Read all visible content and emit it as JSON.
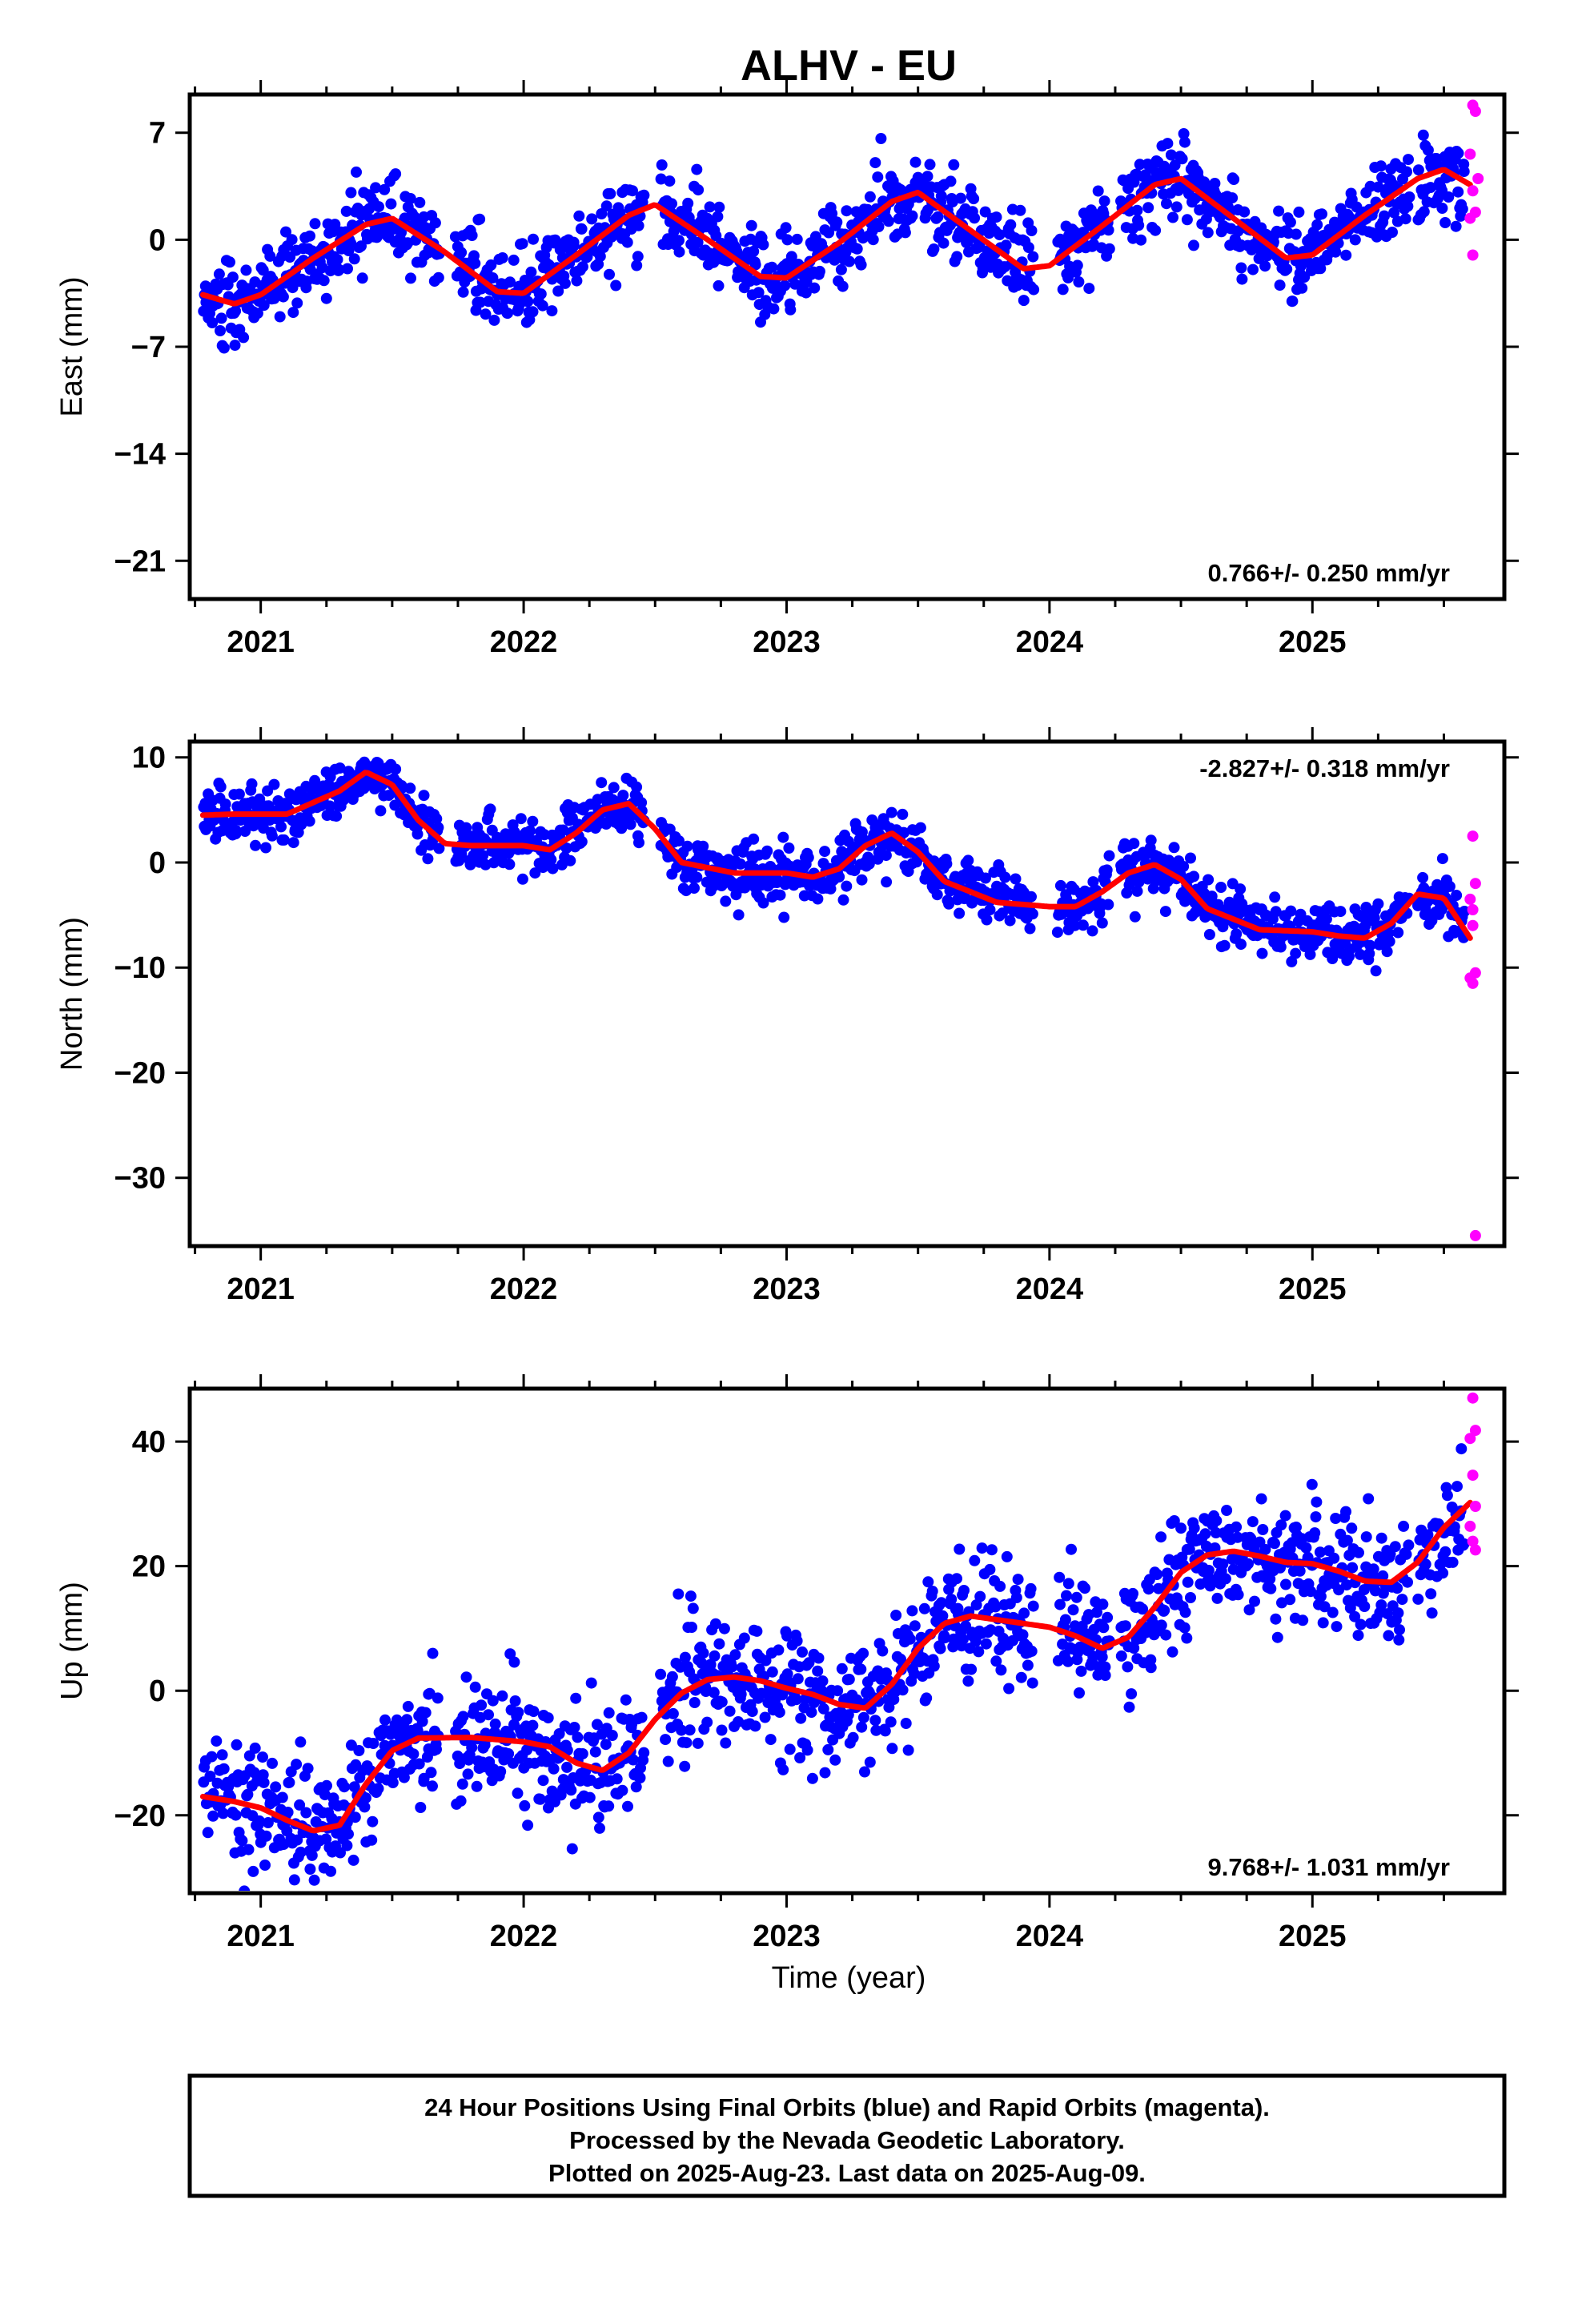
{
  "title": "ALHV - EU",
  "xlabel": "Time (year)",
  "colors": {
    "final": "#0000ff",
    "rapid": "#ff00ff",
    "model": "#ff0000",
    "frame": "#000000"
  },
  "footer": {
    "line1": "24 Hour Positions Using Final Orbits (blue) and Rapid Orbits (magenta).",
    "line2": "Processed by the Nevada Geodetic Laboratory.",
    "line3": "Plotted on 2025-Aug-23. Last data on 2025-Aug-09."
  },
  "chart_data": [
    {
      "type": "scatter",
      "component": "east",
      "ylabel": "East (mm)",
      "rate": "0.766+/- 0.250 mm/yr",
      "rate_position": "bottom-right",
      "xlim": [
        2020.73,
        2025.73
      ],
      "ylim": [
        -23.5,
        9.5
      ],
      "xticks": [
        "2021",
        "2022",
        "2023",
        "2024",
        "2025"
      ],
      "yticks": [
        7,
        0,
        -7,
        -14,
        -21
      ],
      "model_x": [
        2020.78,
        2020.9,
        2021.0,
        2021.2,
        2021.4,
        2021.5,
        2021.7,
        2021.9,
        2022.0,
        2022.2,
        2022.4,
        2022.5,
        2022.7,
        2022.9,
        2023.0,
        2023.2,
        2023.4,
        2023.5,
        2023.7,
        2023.9,
        2024.0,
        2024.2,
        2024.4,
        2024.5,
        2024.7,
        2024.9,
        2025.0,
        2025.2,
        2025.4,
        2025.5,
        2025.6
      ],
      "model_y": [
        -3.6,
        -4.2,
        -3.6,
        -1.2,
        1.0,
        1.4,
        -0.8,
        -3.4,
        -3.5,
        -1.0,
        1.6,
        2.3,
        0.0,
        -2.4,
        -2.5,
        -0.2,
        2.5,
        3.1,
        0.6,
        -1.9,
        -1.7,
        0.9,
        3.6,
        4.0,
        1.4,
        -1.2,
        -1.0,
        1.6,
        4.0,
        4.6,
        3.6
      ],
      "seasonal_amp": 3.0,
      "noise": 1.3,
      "n_final": 1330,
      "rapid_x": [
        2025.61,
        2025.62,
        2025.6,
        2025.63,
        2025.61,
        2025.62,
        2025.6,
        2025.61
      ],
      "rapid_y": [
        8.8,
        8.4,
        5.6,
        4.0,
        3.2,
        1.8,
        1.4,
        -1.0
      ]
    },
    {
      "type": "scatter",
      "component": "north",
      "ylabel": "North (mm)",
      "rate": "-2.827+/- 0.318 mm/yr",
      "rate_position": "top-right",
      "xlim": [
        2020.73,
        2025.73
      ],
      "ylim": [
        -36.5,
        11.5
      ],
      "xticks": [
        "2021",
        "2022",
        "2023",
        "2024",
        "2025"
      ],
      "yticks": [
        10,
        0,
        -10,
        -20,
        -30
      ],
      "model_x": [
        2020.78,
        2020.9,
        2021.1,
        2021.3,
        2021.4,
        2021.5,
        2021.6,
        2021.7,
        2021.8,
        2022.0,
        2022.1,
        2022.2,
        2022.3,
        2022.4,
        2022.5,
        2022.6,
        2022.8,
        2023.0,
        2023.1,
        2023.2,
        2023.3,
        2023.4,
        2023.5,
        2023.6,
        2023.8,
        2024.0,
        2024.1,
        2024.2,
        2024.3,
        2024.4,
        2024.5,
        2024.6,
        2024.8,
        2025.0,
        2025.1,
        2025.2,
        2025.3,
        2025.4,
        2025.5,
        2025.6
      ],
      "model_y": [
        4.5,
        4.6,
        4.6,
        6.8,
        8.6,
        7.4,
        4.0,
        1.8,
        1.6,
        1.6,
        1.2,
        2.8,
        5.0,
        5.6,
        3.2,
        0.0,
        -1.0,
        -1.0,
        -1.4,
        -0.6,
        1.6,
        2.8,
        1.0,
        -1.8,
        -3.8,
        -4.2,
        -4.2,
        -2.8,
        -1.0,
        -0.2,
        -1.6,
        -4.4,
        -6.4,
        -6.6,
        -7.0,
        -7.2,
        -5.8,
        -3.0,
        -3.4,
        -7.2
      ],
      "seasonal_amp": 1.5,
      "noise": 1.3,
      "n_final": 1300,
      "rapid_x": [
        2025.61,
        2025.62,
        2025.6,
        2025.61,
        2025.62,
        2025.6,
        2025.61,
        2025.62,
        2025.61
      ],
      "rapid_y": [
        2.5,
        -2.0,
        -3.5,
        -6.0,
        -10.5,
        -11.0,
        -11.5,
        -35.5,
        -4.5
      ]
    },
    {
      "type": "scatter",
      "component": "up",
      "ylabel": "Up (mm)",
      "rate": "9.768+/- 1.031 mm/yr",
      "rate_position": "bottom-right",
      "xlim": [
        2020.73,
        2025.73
      ],
      "ylim": [
        -32.5,
        48.5
      ],
      "xticks": [
        "2021",
        "2022",
        "2023",
        "2024",
        "2025"
      ],
      "yticks": [
        40,
        20,
        0,
        -20
      ],
      "model_x": [
        2020.78,
        2020.9,
        2021.0,
        2021.1,
        2021.2,
        2021.3,
        2021.4,
        2021.5,
        2021.6,
        2021.8,
        2022.0,
        2022.1,
        2022.2,
        2022.3,
        2022.4,
        2022.5,
        2022.6,
        2022.7,
        2022.8,
        2022.9,
        2023.0,
        2023.1,
        2023.2,
        2023.3,
        2023.4,
        2023.5,
        2023.6,
        2023.7,
        2023.8,
        2024.0,
        2024.1,
        2024.2,
        2024.3,
        2024.4,
        2024.5,
        2024.6,
        2024.7,
        2024.8,
        2024.9,
        2025.0,
        2025.1,
        2025.2,
        2025.3,
        2025.4,
        2025.5,
        2025.6
      ],
      "model_y": [
        -17.0,
        -17.8,
        -18.8,
        -20.8,
        -22.5,
        -21.6,
        -15.0,
        -9.6,
        -7.6,
        -7.5,
        -8.2,
        -9.0,
        -11.6,
        -12.8,
        -10.0,
        -4.6,
        -0.4,
        1.8,
        2.2,
        1.6,
        0.4,
        -0.6,
        -2.2,
        -2.8,
        1.0,
        6.8,
        10.8,
        12.0,
        11.4,
        10.2,
        8.8,
        6.8,
        8.6,
        13.4,
        19.0,
        21.8,
        22.4,
        21.6,
        20.6,
        20.4,
        19.2,
        17.6,
        17.4,
        20.6,
        26.2,
        30.2
      ],
      "seasonal_amp": 2.5,
      "noise": 4.8,
      "n_final": 1330,
      "rapid_x": [
        2025.61,
        2025.62,
        2025.6,
        2025.61,
        2025.62,
        2025.6,
        2025.61,
        2025.62
      ],
      "rapid_y": [
        47.0,
        41.8,
        40.5,
        34.6,
        29.6,
        26.4,
        24.0,
        22.6
      ]
    }
  ]
}
